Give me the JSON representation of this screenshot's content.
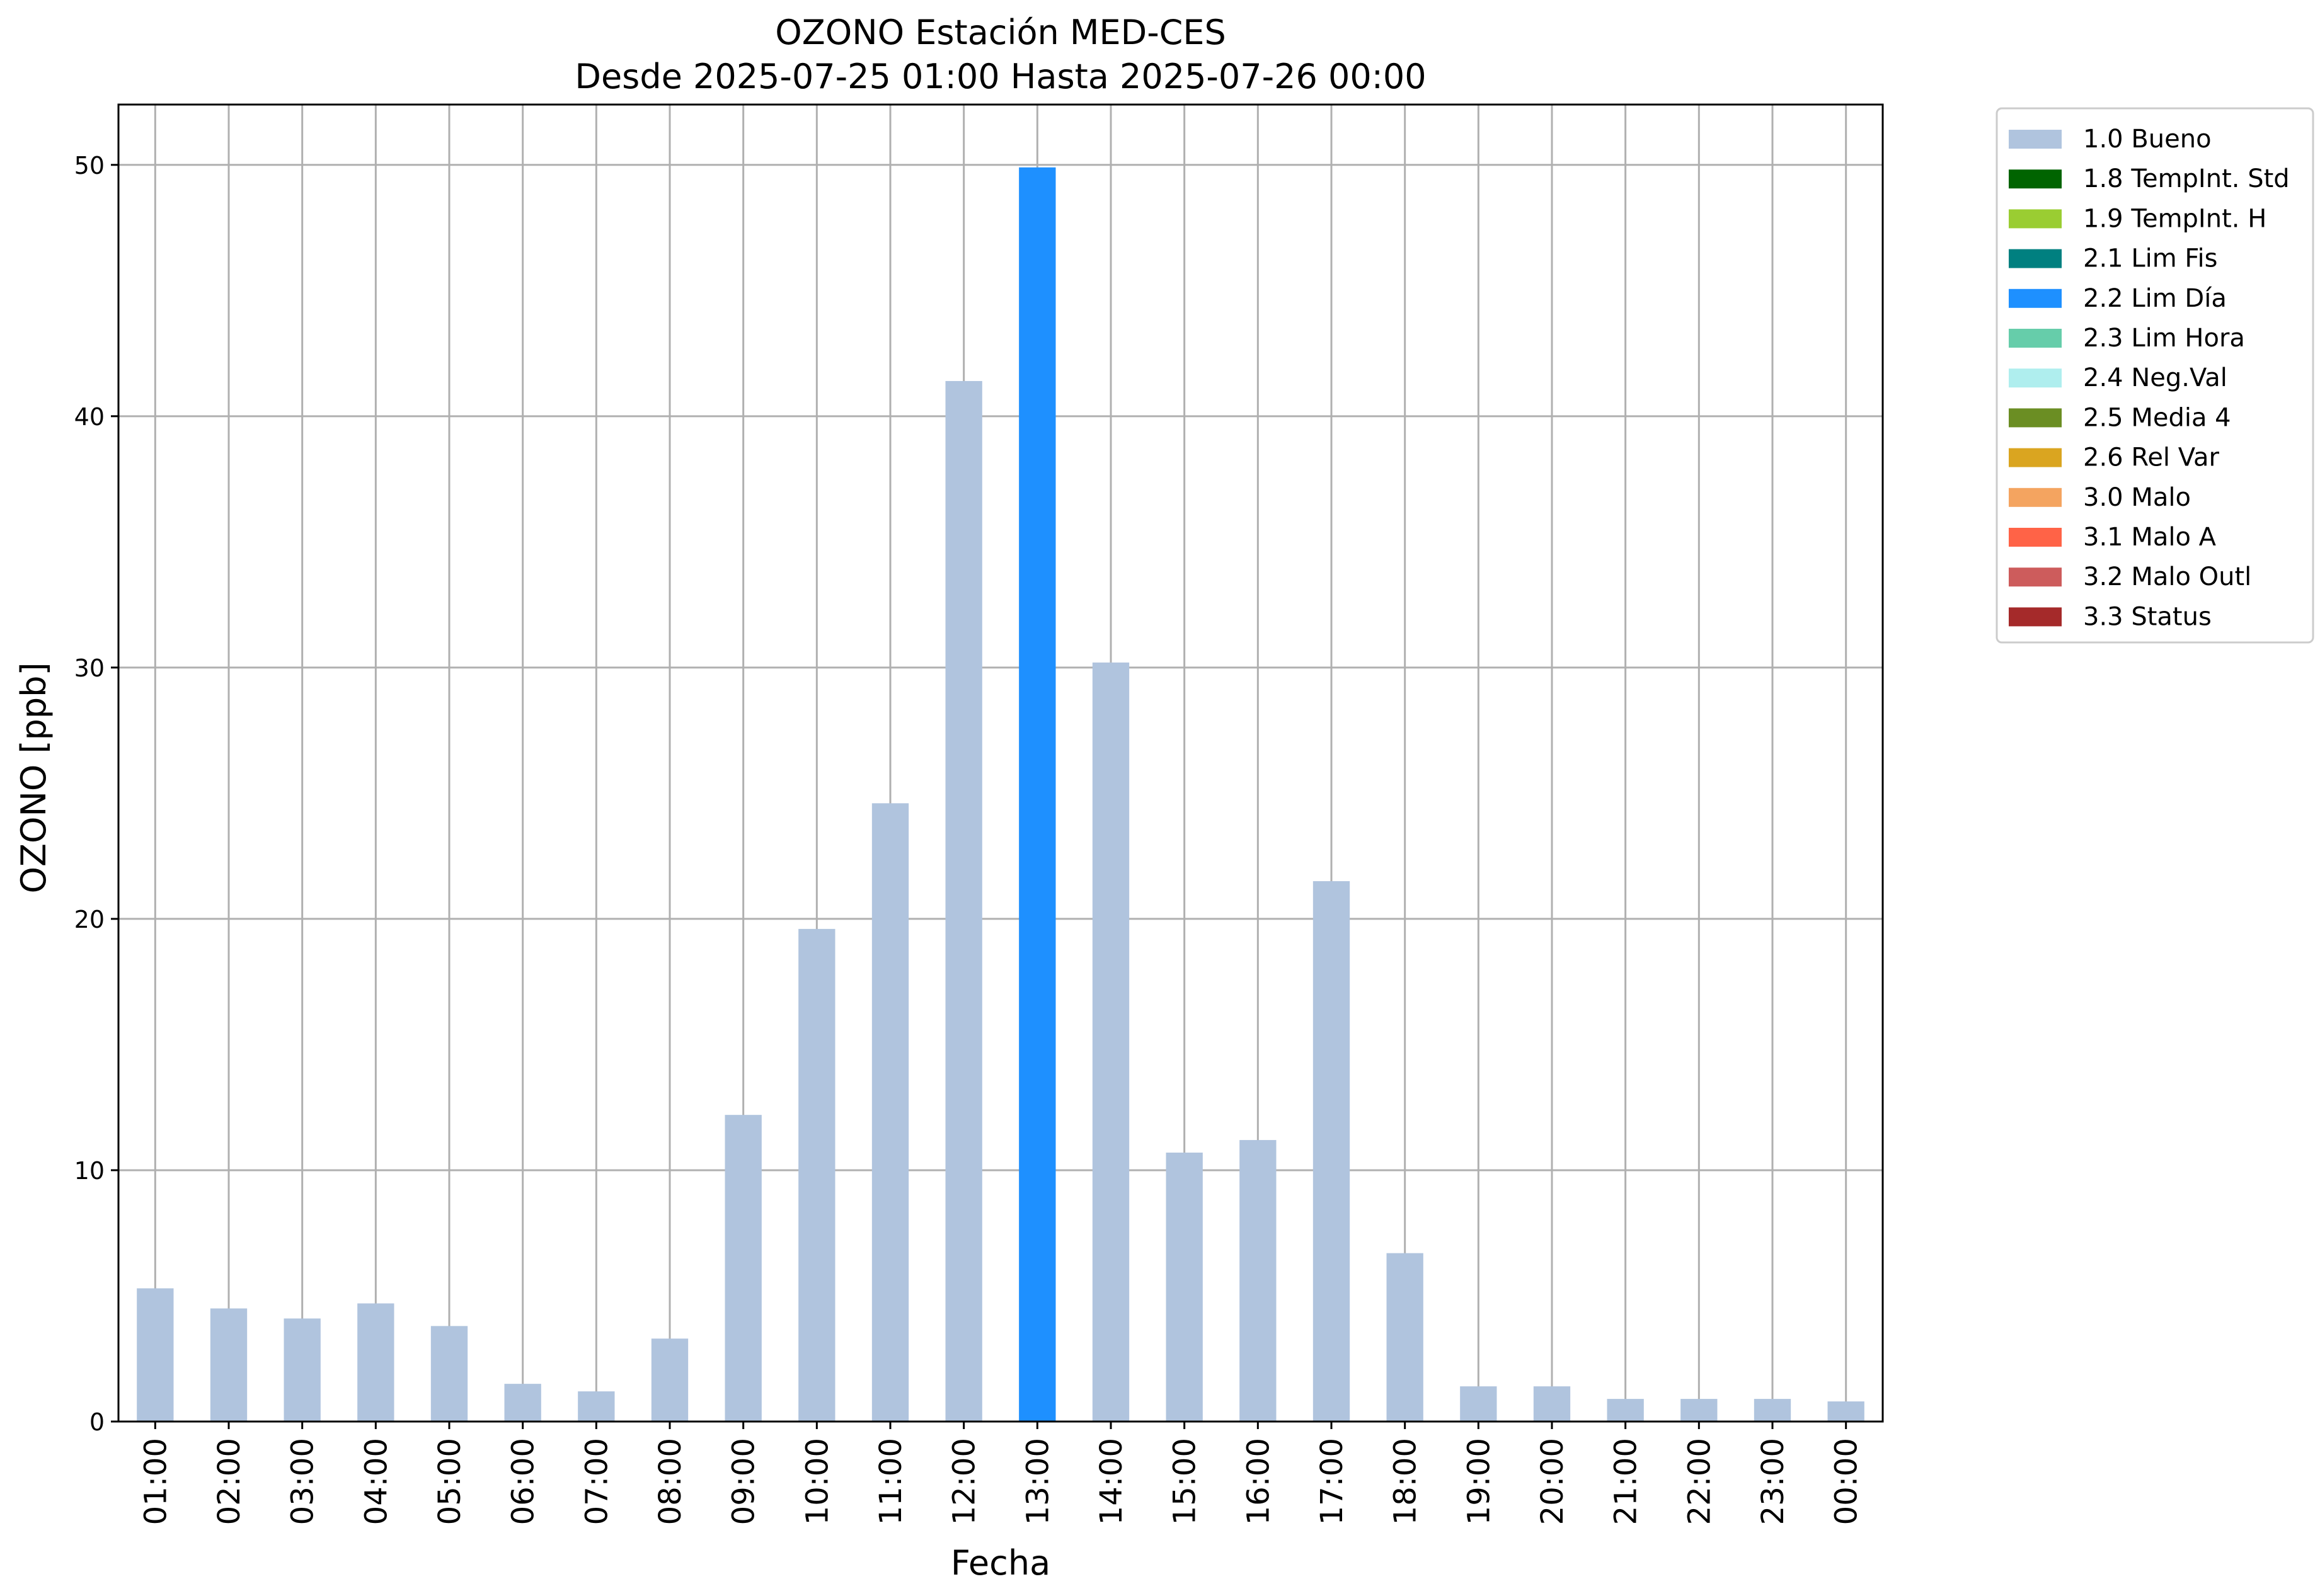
{
  "chart_data": {
    "type": "bar",
    "title": "OZONO Estación MED-CES",
    "subtitle": "Desde 2025-07-25 01:00 Hasta 2025-07-26 00:00",
    "xlabel": "Fecha",
    "ylabel": "OZONO [ppb]",
    "ylim": [
      0,
      52.4
    ],
    "yticks": [
      0,
      10,
      20,
      30,
      40,
      50
    ],
    "grid": true,
    "legend_position": "outside-top-right",
    "categories": [
      "01:00",
      "02:00",
      "03:00",
      "04:00",
      "05:00",
      "06:00",
      "07:00",
      "08:00",
      "09:00",
      "10:00",
      "11:00",
      "12:00",
      "13:00",
      "14:00",
      "15:00",
      "16:00",
      "17:00",
      "18:00",
      "19:00",
      "20:00",
      "21:00",
      "22:00",
      "23:00",
      "00:00"
    ],
    "values": [
      5.3,
      4.5,
      4.1,
      4.7,
      3.8,
      1.5,
      1.2,
      3.3,
      12.2,
      19.6,
      24.6,
      41.4,
      49.9,
      30.2,
      10.7,
      11.2,
      21.5,
      6.7,
      1.4,
      1.4,
      0.9,
      0.9,
      0.9,
      0.8
    ],
    "flags": [
      "1.0 Bueno",
      "1.0 Bueno",
      "1.0 Bueno",
      "1.0 Bueno",
      "1.0 Bueno",
      "1.0 Bueno",
      "1.0 Bueno",
      "1.0 Bueno",
      "1.0 Bueno",
      "1.0 Bueno",
      "1.0 Bueno",
      "1.0 Bueno",
      "2.2 Lim Día",
      "1.0 Bueno",
      "1.0 Bueno",
      "1.0 Bueno",
      "1.0 Bueno",
      "1.0 Bueno",
      "1.0 Bueno",
      "1.0 Bueno",
      "1.0 Bueno",
      "1.0 Bueno",
      "1.0 Bueno",
      "1.0 Bueno"
    ],
    "legend": [
      {
        "label": "1.0 Bueno",
        "color": "#b0c4de"
      },
      {
        "label": "1.8 TempInt. Std",
        "color": "#006400"
      },
      {
        "label": "1.9 TempInt. H",
        "color": "#9acd32"
      },
      {
        "label": "2.1 Lim Fis",
        "color": "#008080"
      },
      {
        "label": "2.2 Lim Día",
        "color": "#1e90ff"
      },
      {
        "label": "2.3 Lim Hora",
        "color": "#66cdaa"
      },
      {
        "label": "2.4 Neg.Val",
        "color": "#afeeee"
      },
      {
        "label": "2.5 Media 4",
        "color": "#6b8e23"
      },
      {
        "label": "2.6 Rel Var",
        "color": "#daa520"
      },
      {
        "label": "3.0 Malo",
        "color": "#f4a460"
      },
      {
        "label": "3.1 Malo A",
        "color": "#ff6347"
      },
      {
        "label": "3.2 Malo Outl",
        "color": "#cd5c5c"
      },
      {
        "label": "3.3 Status",
        "color": "#a52a2a"
      }
    ]
  }
}
